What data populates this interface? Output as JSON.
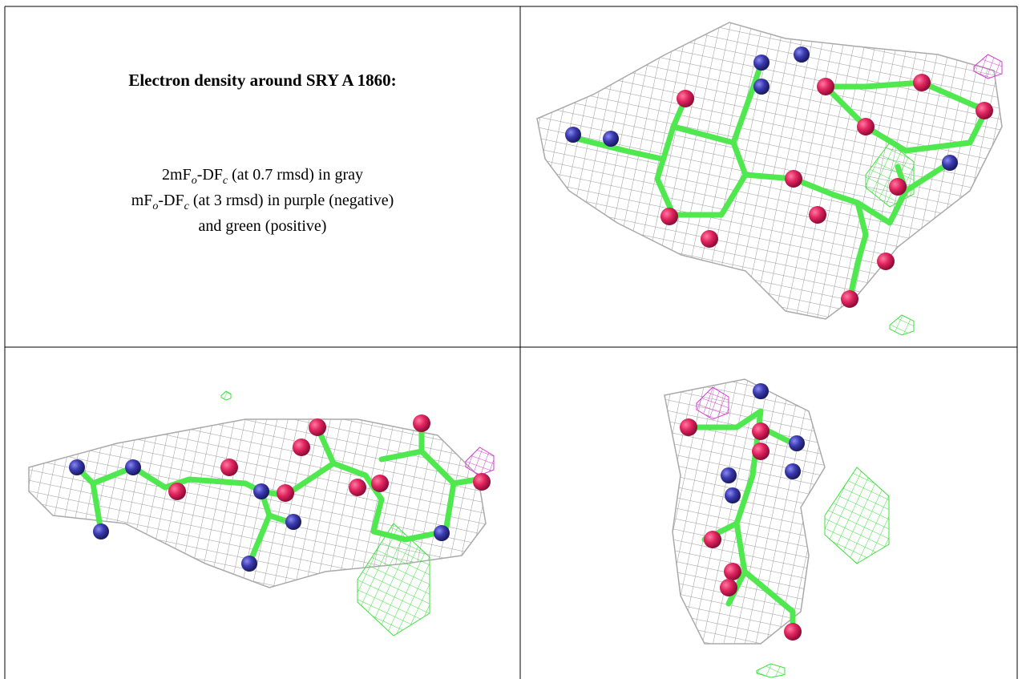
{
  "title": "Electron density around SRY A 1860:",
  "caption": {
    "lines": [
      [
        "2mF",
        "o",
        "-DF",
        "c",
        " (at 0.7 rmsd) in gray"
      ],
      [
        "mF",
        "o",
        "-DF",
        "c",
        " (at 3 rmsd) in purple (negative)"
      ],
      [
        "and green (positive)"
      ]
    ]
  }
}
